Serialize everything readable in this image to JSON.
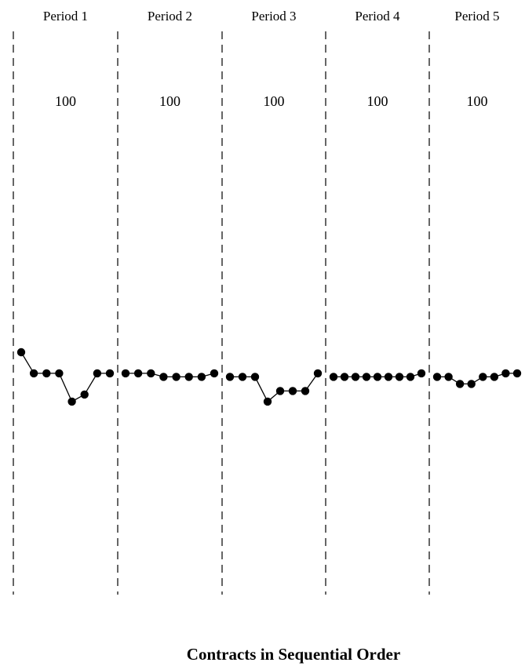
{
  "chart_data": {
    "type": "line",
    "xlabel": "Contracts in Sequential Order",
    "ylabel": "",
    "ylim": [
      0,
      100
    ],
    "grid": false,
    "legend": "none",
    "marker_color": "#000000",
    "periods": [
      {
        "name": "Period 1",
        "value_label": "100",
        "values": [
          50,
          47,
          47,
          47,
          43,
          44,
          47,
          47
        ]
      },
      {
        "name": "Period 2",
        "value_label": "100",
        "values": [
          47,
          47,
          47,
          46.5,
          46.5,
          46.5,
          46.5,
          47
        ]
      },
      {
        "name": "Period 3",
        "value_label": "100",
        "values": [
          46.5,
          46.5,
          46.5,
          43,
          44.5,
          44.5,
          44.5,
          47
        ]
      },
      {
        "name": "Period 4",
        "value_label": "100",
        "values": [
          46.5,
          46.5,
          46.5,
          46.5,
          46.5,
          46.5,
          46.5,
          46.5,
          47
        ]
      },
      {
        "name": "Period 5",
        "value_label": "100",
        "values": [
          46.5,
          46.5,
          45.5,
          45.5,
          46.5,
          46.5,
          47,
          47
        ]
      }
    ]
  }
}
